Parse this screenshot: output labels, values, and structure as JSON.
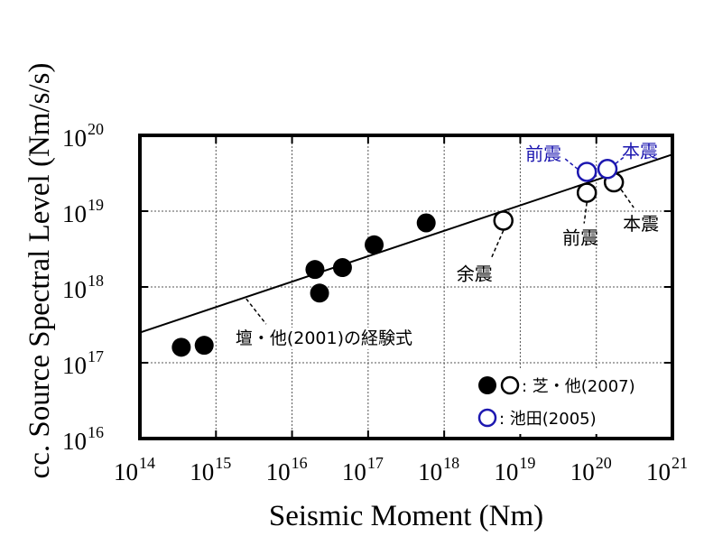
{
  "chart_data": {
    "type": "scatter",
    "xlabel": "Seismic Moment (Nm)",
    "ylabel": "cc. Source Spectral Level (Nm/s/s)",
    "x_scale": "log",
    "y_scale": "log",
    "xlim": [
      100000000000000.0,
      1e+21
    ],
    "ylim": [
      1e+16,
      1e+20
    ],
    "grid": true,
    "x_ticks": [
      {
        "base": "10",
        "exp": "14",
        "value": 100000000000000.0
      },
      {
        "base": "10",
        "exp": "15",
        "value": 1000000000000000.0
      },
      {
        "base": "10",
        "exp": "16",
        "value": 1e+16
      },
      {
        "base": "10",
        "exp": "17",
        "value": 1e+17
      },
      {
        "base": "10",
        "exp": "18",
        "value": 1e+18
      },
      {
        "base": "10",
        "exp": "19",
        "value": 1e+19
      },
      {
        "base": "10",
        "exp": "20",
        "value": 1e+20
      },
      {
        "base": "10",
        "exp": "21",
        "value": 1e+21
      }
    ],
    "y_ticks": [
      {
        "base": "10",
        "exp": "16",
        "value": 1e+16
      },
      {
        "base": "10",
        "exp": "17",
        "value": 1e+17
      },
      {
        "base": "10",
        "exp": "18",
        "value": 1e+18
      },
      {
        "base": "10",
        "exp": "19",
        "value": 1e+19
      },
      {
        "base": "10",
        "exp": "20",
        "value": 1e+20
      }
    ],
    "series": [
      {
        "name": "芝・他(2007)",
        "marker": "filled-circle",
        "color": "#000000",
        "points": [
          {
            "x": 350000000000000.0,
            "y": 1.6e+17
          },
          {
            "x": 700000000000000.0,
            "y": 1.7e+17
          },
          {
            "x": 2e+16,
            "y": 1.7e+18
          },
          {
            "x": 2.3e+16,
            "y": 8.3e+17
          },
          {
            "x": 4.6e+16,
            "y": 1.8e+18
          },
          {
            "x": 1.2e+17,
            "y": 3.6e+18
          },
          {
            "x": 5.8e+17,
            "y": 7e+18
          }
        ]
      },
      {
        "name": "芝・他(2007)",
        "marker": "open-circle",
        "color": "#000000",
        "points": [
          {
            "x": 6e+18,
            "y": 7.5e+18
          },
          {
            "x": 7.5e+19,
            "y": 1.75e+19
          },
          {
            "x": 1.7e+20,
            "y": 2.4e+19
          }
        ]
      },
      {
        "name": "池田(2005)",
        "marker": "open-circle",
        "color": "#1c17b0",
        "points": [
          {
            "x": 7.5e+19,
            "y": 3.3e+19
          },
          {
            "x": 1.4e+20,
            "y": 3.6e+19
          }
        ]
      }
    ],
    "fit_line": {
      "name": "壇・他(2001)の経験式",
      "x": [
        100000000000000.0,
        1e+21
      ],
      "y": [
        2.5e+17,
        5.6e+19
      ]
    },
    "annotations": [
      {
        "text": "余震",
        "color": "#000000"
      },
      {
        "text": "前震",
        "color": "#000000"
      },
      {
        "text": "本震",
        "color": "#000000"
      },
      {
        "text": "前震",
        "color": "#1c17b0"
      },
      {
        "text": "本震",
        "color": "#1c17b0"
      },
      {
        "text": "壇・他(2001)の経験式",
        "color": "#000000"
      }
    ],
    "legend": {
      "placement": "bottom-right",
      "entries": [
        {
          "label": ": 芝・他(2007)"
        },
        {
          "label": ": 池田(2005)"
        }
      ]
    }
  },
  "colors": {
    "ink": "#000000",
    "blue": "#1c17b0",
    "grid": "#555555",
    "background": "#ffffff"
  }
}
